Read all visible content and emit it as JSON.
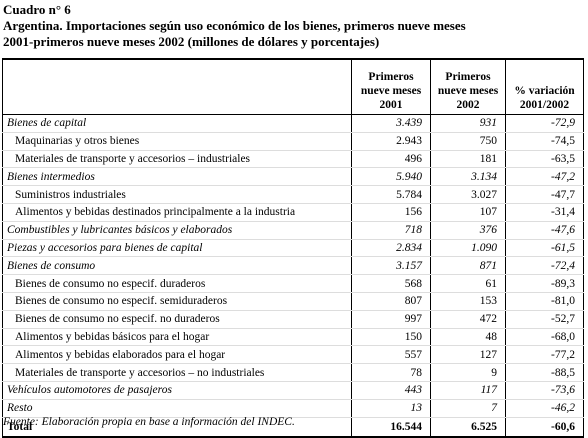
{
  "header": {
    "label": "Cuadro n° 6",
    "title_line1": "Argentina. Importaciones según uso económico de los bienes, primeros nueve meses",
    "title_line2": "2001-primeros nueve meses 2002 (millones de dólares y porcentajes)"
  },
  "table": {
    "columns": [
      "",
      "Primeros nueve meses 2001",
      "Primeros nueve meses 2002",
      "% variación 2001/2002"
    ],
    "rows": [
      [
        "Bienes de capital",
        "3.439",
        "931",
        "-72,9"
      ],
      [
        "Maquinarias y otros bienes",
        "2.943",
        "750",
        "-74,5"
      ],
      [
        "Materiales de transporte y accesorios – industriales",
        "496",
        "181",
        "-63,5"
      ],
      [
        "Bienes intermedios",
        "5.940",
        "3.134",
        "-47,2"
      ],
      [
        "Suministros industriales",
        "5.784",
        "3.027",
        "-47,7"
      ],
      [
        "Alimentos y bebidas destinados principalmente a la industria",
        "156",
        "107",
        "-31,4"
      ],
      [
        "Combustibles y lubricantes básicos y elaborados",
        "718",
        "376",
        "-47,6"
      ],
      [
        "Piezas y accesorios para bienes de capital",
        "2.834",
        "1.090",
        "-61,5"
      ],
      [
        "Bienes de consumo",
        "3.157",
        "871",
        "-72,4"
      ],
      [
        "Bienes de consumo no especif. duraderos",
        "568",
        "61",
        "-89,3"
      ],
      [
        "Bienes de consumo no especif. semiduraderos",
        "807",
        "153",
        "-81,0"
      ],
      [
        "Bienes de consumo no especif. no duraderos",
        "997",
        "472",
        "-52,7"
      ],
      [
        "Alimentos y bebidas básicos para el hogar",
        "150",
        "48",
        "-68,0"
      ],
      [
        "Alimentos y bebidas elaborados para el hogar",
        "557",
        "127",
        "-77,2"
      ],
      [
        "Materiales de transporte y accesorios – no industriales",
        "78",
        "9",
        "-88,5"
      ],
      [
        "Vehículos automotores de pasajeros",
        "443",
        "117",
        "-73,6"
      ],
      [
        "Resto",
        "13",
        "7",
        "-46,2"
      ]
    ],
    "total": [
      "Total",
      "16.544",
      "6.525",
      "-60,6"
    ]
  },
  "footer": "Fuente: Elaboración propia en base a información del INDEC."
}
